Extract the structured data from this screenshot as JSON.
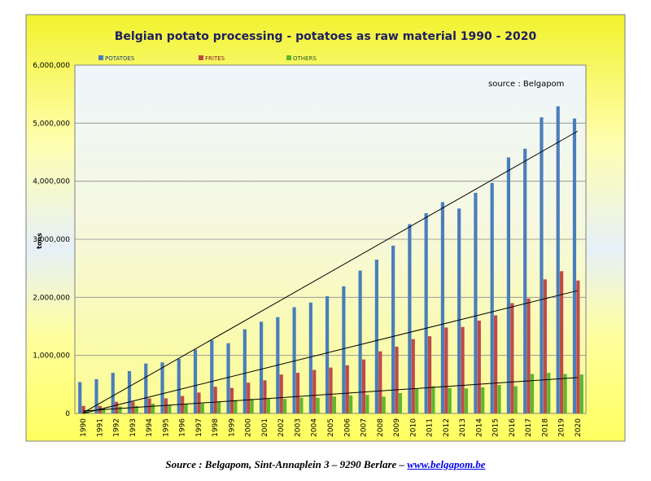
{
  "chart_data": {
    "type": "bar",
    "title": "Belgian potato processing - potatoes as raw material 1990 - 2020",
    "ylabel": "tons",
    "annotation": "source : Belgapom",
    "ylim": [
      0,
      6000000
    ],
    "yticks": [
      "0",
      "1,000,000",
      "2,000,000",
      "3,000,000",
      "4,000,000",
      "5,000,000",
      "6,000,000"
    ],
    "legend_position": "top",
    "trendlines": true,
    "grid": true,
    "categories": [
      "1990",
      "1991",
      "1992",
      "1993",
      "1994",
      "1995",
      "1996",
      "1997",
      "1998",
      "1999",
      "2000",
      "2001",
      "2002",
      "2003",
      "2004",
      "2005",
      "2006",
      "2007",
      "2008",
      "2009",
      "2010",
      "2011",
      "2012",
      "2013",
      "2014",
      "2015",
      "2016",
      "2017",
      "2018",
      "2019",
      "2020"
    ],
    "series": [
      {
        "name": "POTATOES",
        "color": "#4a7ebb",
        "values": [
          540000,
          590000,
          700000,
          730000,
          860000,
          880000,
          940000,
          1100000,
          1260000,
          1210000,
          1450000,
          1580000,
          1660000,
          1830000,
          1910000,
          2020000,
          2190000,
          2460000,
          2650000,
          2890000,
          3260000,
          3450000,
          3640000,
          3530000,
          3800000,
          3970000,
          4410000,
          4560000,
          5100000,
          5290000,
          5080000
        ]
      },
      {
        "name": "FRITES",
        "color": "#be4b48",
        "values": [
          130000,
          130000,
          200000,
          200000,
          260000,
          260000,
          300000,
          360000,
          460000,
          440000,
          530000,
          570000,
          670000,
          700000,
          750000,
          790000,
          830000,
          930000,
          1070000,
          1150000,
          1280000,
          1330000,
          1480000,
          1490000,
          1600000,
          1690000,
          1900000,
          1980000,
          2310000,
          2450000,
          2290000
        ]
      },
      {
        "name": "OTHERS",
        "color": "#5cb82e",
        "values": [
          60000,
          90000,
          120000,
          130000,
          170000,
          150000,
          160000,
          170000,
          200000,
          230000,
          250000,
          250000,
          250000,
          270000,
          270000,
          290000,
          310000,
          320000,
          290000,
          350000,
          420000,
          470000,
          440000,
          430000,
          450000,
          490000,
          470000,
          680000,
          700000,
          680000,
          670000
        ]
      }
    ]
  },
  "footer": {
    "text": "Source : Belgapom, Sint-Annaplein 3 – 9290 Berlare – ",
    "link": "www.belgapom.be"
  }
}
